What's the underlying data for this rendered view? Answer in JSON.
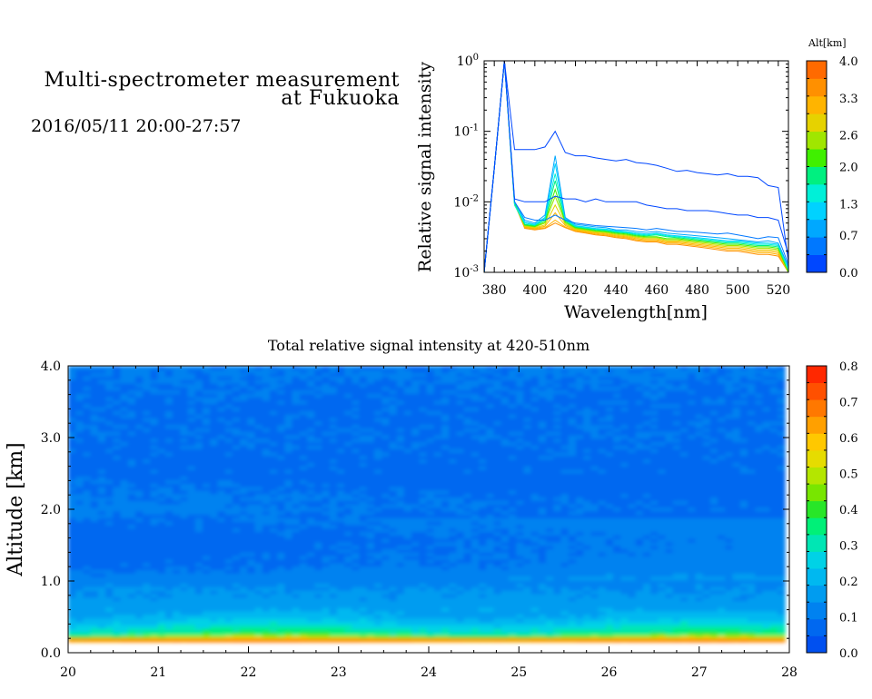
{
  "header": {
    "title_line1": "Multi-spectrometer measurement",
    "title_line2": "at Fukuoka",
    "datetime": "2016/05/11 20:00-27:57"
  },
  "colors": {
    "altitude_scale": [
      "#0047ff",
      "#0078ff",
      "#00a8ff",
      "#00d2ff",
      "#00f0d8",
      "#00f080",
      "#40f000",
      "#a0e600",
      "#e6d200",
      "#ffb400",
      "#ff9000",
      "#ff6a00"
    ],
    "intensity_scale": [
      "#0050f0",
      "#0068f0",
      "#0082f0",
      "#009cf0",
      "#00b8f0",
      "#00d2e6",
      "#00e6b4",
      "#00f078",
      "#28e628",
      "#78e600",
      "#b4e600",
      "#e6dc00",
      "#ffc800",
      "#ffa000",
      "#ff7800",
      "#ff5000",
      "#ff2800"
    ]
  },
  "chart_data": [
    {
      "id": "spectrum",
      "type": "line",
      "ylabel": "Relative signal intensity",
      "xlabel": "Wavelength[nm]",
      "xlim": [
        375,
        525
      ],
      "ylim": [
        0.001,
        1
      ],
      "yscale": "log",
      "xticks": [
        380,
        400,
        420,
        440,
        460,
        480,
        500,
        520
      ],
      "yticks": [
        {
          "value": 1,
          "label_base": "10",
          "label_exp": "0"
        },
        {
          "value": 0.1,
          "label_base": "10",
          "label_exp": "-1"
        },
        {
          "value": 0.01,
          "label_base": "10",
          "label_exp": "-2"
        },
        {
          "value": 0.001,
          "label_base": "10",
          "label_exp": "-3"
        }
      ],
      "x": [
        375,
        380,
        385,
        390,
        395,
        400,
        405,
        410,
        415,
        420,
        425,
        430,
        435,
        440,
        445,
        450,
        455,
        460,
        465,
        470,
        475,
        480,
        485,
        490,
        495,
        500,
        505,
        510,
        515,
        520,
        525
      ],
      "series": [
        {
          "altitude_km": 0.1,
          "values": [
            0.001,
            0.03,
            1.0,
            0.055,
            0.055,
            0.055,
            0.06,
            0.1,
            0.05,
            0.045,
            0.045,
            0.042,
            0.04,
            0.038,
            0.04,
            0.036,
            0.035,
            0.033,
            0.03,
            0.027,
            0.028,
            0.026,
            0.025,
            0.024,
            0.025,
            0.023,
            0.023,
            0.022,
            0.017,
            0.016,
            0.0014
          ]
        },
        {
          "altitude_km": 0.3,
          "values": [
            0.001,
            0.03,
            1.0,
            0.011,
            0.01,
            0.01,
            0.01,
            0.012,
            0.011,
            0.011,
            0.01,
            0.011,
            0.01,
            0.01,
            0.01,
            0.01,
            0.009,
            0.0085,
            0.008,
            0.008,
            0.0075,
            0.0075,
            0.0075,
            0.0072,
            0.0068,
            0.0065,
            0.0065,
            0.006,
            0.006,
            0.0055,
            0.0018
          ]
        },
        {
          "altitude_km": 0.6,
          "values": [
            0.001,
            0.03,
            1.0,
            0.01,
            0.006,
            0.0055,
            0.0055,
            0.0065,
            0.0055,
            0.005,
            0.0048,
            0.0046,
            0.0045,
            0.0044,
            0.0043,
            0.0042,
            0.004,
            0.0042,
            0.004,
            0.0038,
            0.0038,
            0.0037,
            0.0036,
            0.0035,
            0.0036,
            0.0034,
            0.0032,
            0.003,
            0.0032,
            0.0031,
            0.0013
          ]
        },
        {
          "altitude_km": 0.9,
          "values": [
            0.001,
            0.03,
            1.0,
            0.01,
            0.0055,
            0.005,
            0.0065,
            0.045,
            0.006,
            0.0048,
            0.0046,
            0.0044,
            0.0043,
            0.004,
            0.004,
            0.0038,
            0.0037,
            0.0038,
            0.0036,
            0.0035,
            0.0034,
            0.0033,
            0.0032,
            0.0031,
            0.003,
            0.0029,
            0.0028,
            0.0027,
            0.0028,
            0.0026,
            0.0012
          ]
        },
        {
          "altitude_km": 1.2,
          "values": [
            0.001,
            0.03,
            1.0,
            0.01,
            0.0052,
            0.0048,
            0.006,
            0.035,
            0.0058,
            0.0046,
            0.0044,
            0.0042,
            0.0041,
            0.0039,
            0.0038,
            0.0036,
            0.0035,
            0.0036,
            0.0034,
            0.0033,
            0.0032,
            0.0031,
            0.003,
            0.0029,
            0.0028,
            0.0028,
            0.0027,
            0.0026,
            0.0026,
            0.0025,
            0.0012
          ]
        },
        {
          "altitude_km": 1.5,
          "values": [
            0.001,
            0.03,
            1.0,
            0.009,
            0.005,
            0.0047,
            0.0058,
            0.025,
            0.0056,
            0.0045,
            0.0043,
            0.0041,
            0.004,
            0.0038,
            0.0037,
            0.0035,
            0.0034,
            0.0035,
            0.0033,
            0.0032,
            0.0031,
            0.003,
            0.0029,
            0.0028,
            0.0027,
            0.0027,
            0.0026,
            0.0025,
            0.0025,
            0.0024,
            0.0011
          ]
        },
        {
          "altitude_km": 1.8,
          "values": [
            0.001,
            0.03,
            1.0,
            0.009,
            0.0048,
            0.0046,
            0.0055,
            0.02,
            0.0054,
            0.0044,
            0.0042,
            0.004,
            0.0039,
            0.0037,
            0.0036,
            0.0034,
            0.0033,
            0.0034,
            0.0032,
            0.0031,
            0.003,
            0.0029,
            0.0028,
            0.0027,
            0.0026,
            0.0026,
            0.0025,
            0.0024,
            0.0024,
            0.0023,
            0.0011
          ]
        },
        {
          "altitude_km": 2.1,
          "values": [
            0.001,
            0.03,
            1.0,
            0.0095,
            0.0047,
            0.0045,
            0.0052,
            0.015,
            0.0052,
            0.0043,
            0.0041,
            0.0039,
            0.0038,
            0.0036,
            0.0035,
            0.0033,
            0.0032,
            0.0032,
            0.003,
            0.003,
            0.0029,
            0.0028,
            0.0027,
            0.0026,
            0.0025,
            0.0025,
            0.0024,
            0.0023,
            0.0023,
            0.0022,
            0.001
          ]
        },
        {
          "altitude_km": 2.4,
          "values": [
            0.001,
            0.03,
            1.0,
            0.0095,
            0.0046,
            0.0044,
            0.005,
            0.012,
            0.005,
            0.0042,
            0.004,
            0.0038,
            0.0037,
            0.0035,
            0.0034,
            0.0032,
            0.0031,
            0.0031,
            0.0029,
            0.0029,
            0.0028,
            0.0027,
            0.0026,
            0.0025,
            0.0024,
            0.0024,
            0.0023,
            0.0022,
            0.0022,
            0.0021,
            0.001
          ]
        },
        {
          "altitude_km": 2.7,
          "values": [
            0.001,
            0.03,
            1.0,
            0.0095,
            0.0045,
            0.0043,
            0.0047,
            0.009,
            0.0048,
            0.0041,
            0.0039,
            0.0037,
            0.0036,
            0.0034,
            0.0033,
            0.0031,
            0.003,
            0.003,
            0.0028,
            0.0028,
            0.0027,
            0.0026,
            0.0025,
            0.0024,
            0.0023,
            0.0023,
            0.0022,
            0.0021,
            0.0021,
            0.002,
            0.001
          ]
        },
        {
          "altitude_km": 3.0,
          "values": [
            0.001,
            0.03,
            1.0,
            0.0095,
            0.0044,
            0.0042,
            0.0045,
            0.007,
            0.0046,
            0.004,
            0.0038,
            0.0036,
            0.0035,
            0.0033,
            0.0032,
            0.003,
            0.0029,
            0.0029,
            0.0027,
            0.0027,
            0.0026,
            0.0025,
            0.0024,
            0.0023,
            0.0022,
            0.0022,
            0.0021,
            0.002,
            0.002,
            0.0019,
            0.001
          ]
        },
        {
          "altitude_km": 3.3,
          "values": [
            0.001,
            0.03,
            1.0,
            0.0095,
            0.0043,
            0.0041,
            0.0043,
            0.0055,
            0.0044,
            0.0039,
            0.0037,
            0.0035,
            0.0034,
            0.0032,
            0.0031,
            0.0029,
            0.0028,
            0.0028,
            0.0026,
            0.0026,
            0.0025,
            0.0024,
            0.0023,
            0.0022,
            0.0021,
            0.0021,
            0.002,
            0.0019,
            0.0019,
            0.0018,
            0.001
          ]
        },
        {
          "altitude_km": 3.6,
          "values": [
            0.001,
            0.03,
            1.0,
            0.0095,
            0.0042,
            0.004,
            0.0042,
            0.005,
            0.0043,
            0.0038,
            0.0036,
            0.0034,
            0.0033,
            0.0031,
            0.003,
            0.0028,
            0.0027,
            0.0027,
            0.0025,
            0.0025,
            0.0024,
            0.0023,
            0.0022,
            0.0021,
            0.002,
            0.002,
            0.0019,
            0.0018,
            0.0018,
            0.0017,
            0.001
          ]
        }
      ],
      "colorbar": {
        "title": "Alt[km]",
        "range": [
          0,
          4
        ],
        "ticks": [
          "0.0",
          "0.7",
          "1.3",
          "2.0",
          "2.6",
          "3.3",
          "4.0"
        ]
      }
    },
    {
      "id": "time-altitude",
      "type": "heatmap",
      "title": "Total relative signal intensity at 420-510nm",
      "ylabel": "Altitude [km]",
      "xlabel": "",
      "xlim": [
        20,
        28
      ],
      "ylim": [
        0,
        4
      ],
      "xticks": [
        "20",
        "21",
        "22",
        "23",
        "24",
        "25",
        "26",
        "27",
        "28"
      ],
      "yticks": [
        "0.0",
        "1.0",
        "2.0",
        "3.0",
        "4.0"
      ],
      "data_x_end": 27.95,
      "data_y_start": 0.15,
      "altitude_profile_km": [
        0.15,
        0.2,
        0.25,
        0.3,
        0.4,
        0.5,
        0.6,
        0.7,
        0.8,
        0.9,
        1.0,
        1.2,
        1.4,
        1.6,
        1.8,
        2.0,
        2.2,
        2.4,
        2.6,
        2.8,
        3.0,
        3.3,
        3.6,
        4.0
      ],
      "intensity_profile": [
        0.72,
        0.55,
        0.36,
        0.32,
        0.25,
        0.2,
        0.18,
        0.16,
        0.15,
        0.14,
        0.12,
        0.08,
        0.07,
        0.07,
        0.08,
        0.11,
        0.1,
        0.09,
        0.08,
        0.085,
        0.09,
        0.085,
        0.09,
        0.1
      ],
      "colorbar": {
        "range": [
          0,
          0.8
        ],
        "ticks": [
          "0.0",
          "0.1",
          "0.2",
          "0.3",
          "0.4",
          "0.5",
          "0.6",
          "0.7",
          "0.8"
        ]
      }
    }
  ]
}
